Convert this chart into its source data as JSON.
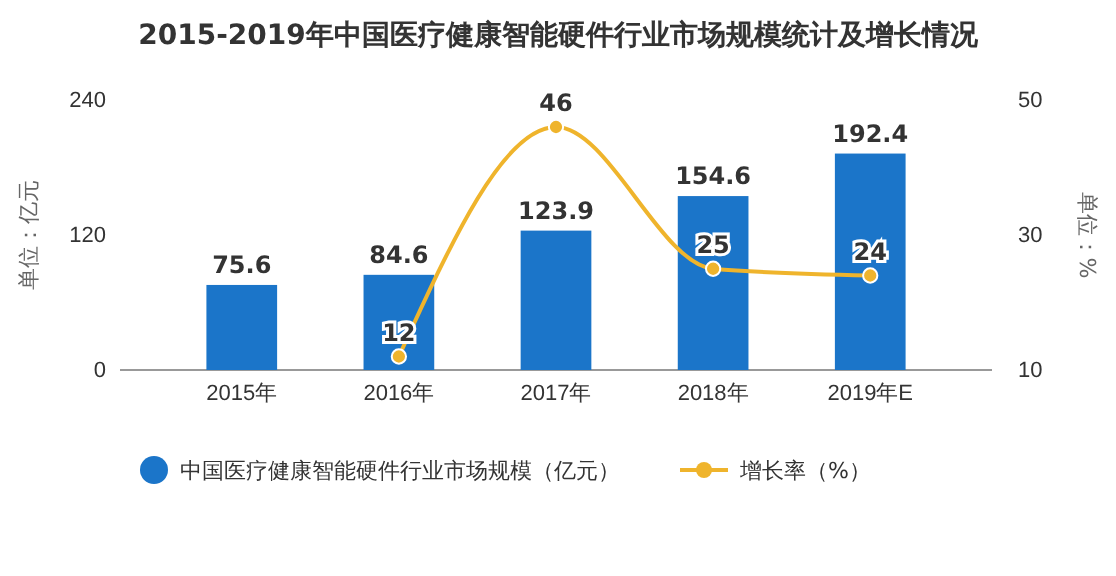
{
  "chart_data": {
    "type": "bar",
    "title": "2015-2019年中国医疗健康智能硬件行业市场规模统计及增长情况",
    "categories": [
      "2015年",
      "2016年",
      "2017年",
      "2018年",
      "2019年E"
    ],
    "series": [
      {
        "name": "中国医疗健康智能硬件行业市场规模（亿元）",
        "color": "#1b75c9",
        "values": [
          75.6,
          84.6,
          123.9,
          154.6,
          192.4
        ]
      },
      {
        "name": "增长率（%）",
        "type": "line",
        "axis": "y2",
        "color": "#efb42c",
        "values": [
          null,
          12,
          46,
          25,
          24
        ]
      }
    ],
    "ylabel": "单位：亿元",
    "y2label": "单位：%",
    "ylim": [
      0,
      240
    ],
    "yticks": [
      0,
      120,
      240
    ],
    "y2lim": [
      10,
      50
    ],
    "y2ticks": [
      10,
      30,
      50
    ],
    "data_labels": true,
    "legend": "bottom",
    "marker": "circle",
    "grid": false
  }
}
